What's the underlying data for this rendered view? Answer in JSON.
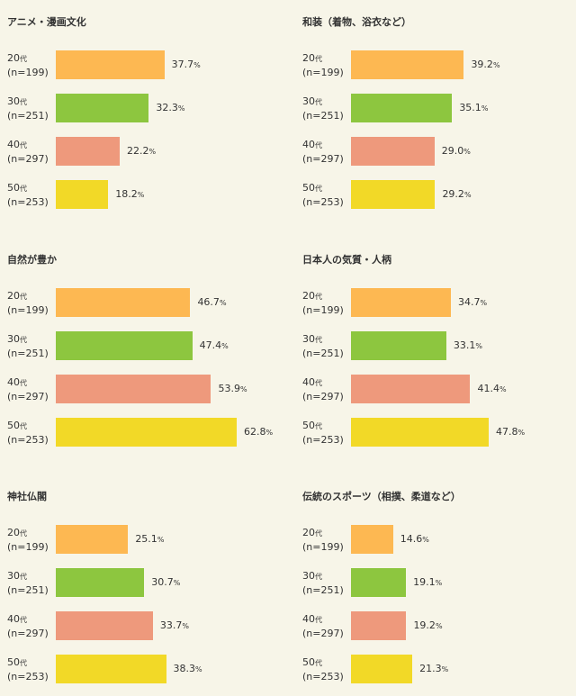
{
  "colors": {
    "20": "#fdb852",
    "30": "#8dc63f",
    "40": "#ee997c",
    "50": "#f2d927"
  },
  "chart_data": [
    {
      "type": "bar",
      "title": "アニメ・漫画文化",
      "categories": [
        {
          "decade": "20",
          "unit": "代",
          "n": "(n=199)"
        },
        {
          "decade": "30",
          "unit": "代",
          "n": "(n=251)"
        },
        {
          "decade": "40",
          "unit": "代",
          "n": "(n=297)"
        },
        {
          "decade": "50",
          "unit": "代",
          "n": "(n=253)"
        }
      ],
      "values": [
        37.7,
        32.3,
        22.2,
        18.2
      ]
    },
    {
      "type": "bar",
      "title": "和装（着物、浴衣など）",
      "categories": [
        {
          "decade": "20",
          "unit": "代",
          "n": "(n=199)"
        },
        {
          "decade": "30",
          "unit": "代",
          "n": "(n=251)"
        },
        {
          "decade": "40",
          "unit": "代",
          "n": "(n=297)"
        },
        {
          "decade": "50",
          "unit": "代",
          "n": "(n=253)"
        }
      ],
      "values": [
        39.2,
        35.1,
        29.0,
        29.2
      ]
    },
    {
      "type": "bar",
      "title": "自然が豊か",
      "categories": [
        {
          "decade": "20",
          "unit": "代",
          "n": "(n=199)"
        },
        {
          "decade": "30",
          "unit": "代",
          "n": "(n=251)"
        },
        {
          "decade": "40",
          "unit": "代",
          "n": "(n=297)"
        },
        {
          "decade": "50",
          "unit": "代",
          "n": "(n=253)"
        }
      ],
      "values": [
        46.7,
        47.4,
        53.9,
        62.8
      ]
    },
    {
      "type": "bar",
      "title": "日本人の気質・人柄",
      "categories": [
        {
          "decade": "20",
          "unit": "代",
          "n": "(n=199)"
        },
        {
          "decade": "30",
          "unit": "代",
          "n": "(n=251)"
        },
        {
          "decade": "40",
          "unit": "代",
          "n": "(n=297)"
        },
        {
          "decade": "50",
          "unit": "代",
          "n": "(n=253)"
        }
      ],
      "values": [
        34.7,
        33.1,
        41.4,
        47.8
      ]
    },
    {
      "type": "bar",
      "title": "神社仏閣",
      "categories": [
        {
          "decade": "20",
          "unit": "代",
          "n": "(n=199)"
        },
        {
          "decade": "30",
          "unit": "代",
          "n": "(n=251)"
        },
        {
          "decade": "40",
          "unit": "代",
          "n": "(n=297)"
        },
        {
          "decade": "50",
          "unit": "代",
          "n": "(n=253)"
        }
      ],
      "values": [
        25.1,
        30.7,
        33.7,
        38.3
      ]
    },
    {
      "type": "bar",
      "title": "伝統のスポーツ（相撲、柔道など）",
      "categories": [
        {
          "decade": "20",
          "unit": "代",
          "n": "(n=199)"
        },
        {
          "decade": "30",
          "unit": "代",
          "n": "(n=251)"
        },
        {
          "decade": "40",
          "unit": "代",
          "n": "(n=297)"
        },
        {
          "decade": "50",
          "unit": "代",
          "n": "(n=253)"
        }
      ],
      "values": [
        14.6,
        19.1,
        19.2,
        21.3
      ]
    }
  ],
  "value_suffix": "%"
}
